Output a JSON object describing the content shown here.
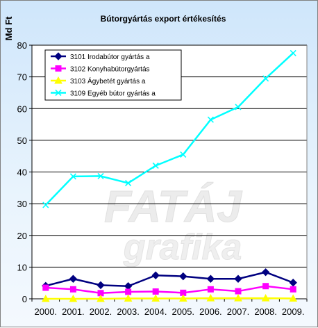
{
  "chart_data": {
    "type": "line",
    "title": "Bútorgyártás export értékesítés",
    "ylabel": "Md Ft",
    "xlabel": "",
    "ylim": [
      0,
      80
    ],
    "yticks": [
      0,
      10,
      20,
      30,
      40,
      50,
      60,
      70,
      80
    ],
    "grid": true,
    "legend_position": "top-left",
    "categories": [
      "2000.",
      "2001.",
      "2002.",
      "2003.",
      "2004.",
      "2005.",
      "2006.",
      "2007.",
      "2008.",
      "2009."
    ],
    "watermark": "FATÁJ grafika",
    "series": [
      {
        "name": "3101  Irodabútor gyártás a",
        "color": "#000080",
        "marker": "diamond",
        "values": [
          4.1,
          6.3,
          4.3,
          4.0,
          7.4,
          7.1,
          6.3,
          6.3,
          8.4,
          5.1
        ]
      },
      {
        "name": "3102  Konyhabútorgyártás",
        "color": "#ff00ff",
        "marker": "square",
        "values": [
          3.5,
          3.0,
          1.8,
          2.2,
          2.3,
          1.9,
          3.0,
          2.4,
          4.0,
          3.0
        ]
      },
      {
        "name": "3103  Ágybetét gyártás a",
        "color": "#ffff00",
        "marker": "triangle",
        "values": [
          0.0,
          0.0,
          0.0,
          0.1,
          0.1,
          0.1,
          0.2,
          0.2,
          0.2,
          0.1
        ]
      },
      {
        "name": "3109  Egyéb bútor gyártás a",
        "color": "#00ffff",
        "marker": "x",
        "values": [
          29.6,
          38.6,
          38.7,
          36.5,
          42.0,
          45.5,
          56.5,
          60.5,
          69.5,
          77.5
        ]
      }
    ]
  }
}
